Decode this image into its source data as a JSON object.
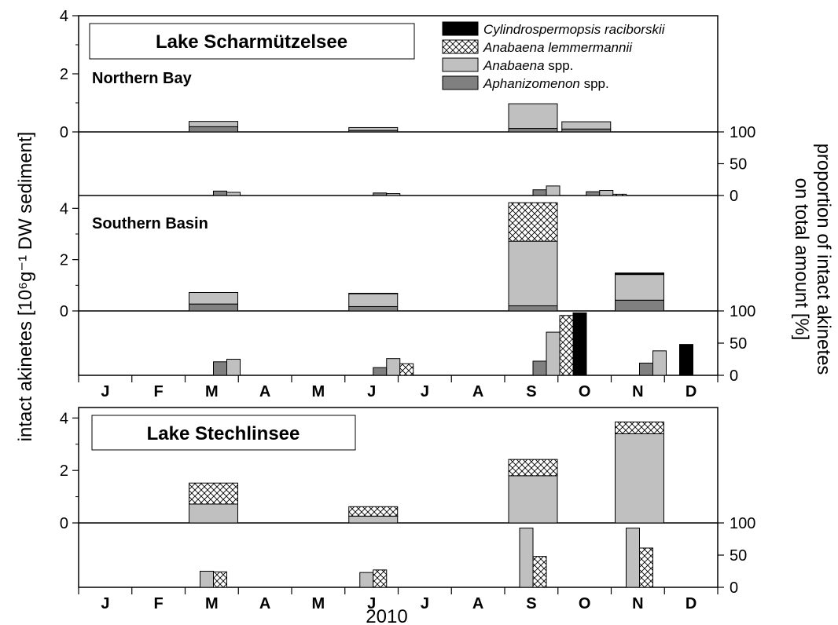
{
  "colors": {
    "cylindrospermopsis": "#000000",
    "lemmermannii": "#ffffff",
    "anabaena": "#c0c0c0",
    "aphanizomenon": "#808080"
  },
  "legend": [
    {
      "key": "cylindrospermopsis",
      "italic": "Cylindrospermopsis raciborskii",
      "plain": "",
      "pattern": "solid-black"
    },
    {
      "key": "lemmermannii",
      "italic": "Anabaena lemmermannii",
      "plain": "",
      "pattern": "crosshatch"
    },
    {
      "key": "anabaena",
      "italic": "Anabaena",
      "plain": " spp.",
      "pattern": "solid-lightgray"
    },
    {
      "key": "aphanizomenon",
      "italic": "Aphanizomenon",
      "plain": " spp.",
      "pattern": "solid-darkgray"
    }
  ],
  "labels": {
    "y_left": "intact akinetes [10⁶g⁻¹ DW sediment]",
    "y_right_line1": "proportion of intact akinetes",
    "y_right_line2": "on total amount [%]",
    "x": "2010",
    "lake1": "Lake Scharmützelsee",
    "lake2": "Lake Stechlinsee",
    "basin_north": "Northern Bay",
    "basin_south": "Southern Basin"
  },
  "months": [
    "J",
    "F",
    "M",
    "A",
    "M",
    "J",
    "J",
    "A",
    "S",
    "O",
    "N",
    "D"
  ],
  "chart_data": [
    {
      "type": "bar",
      "stacked": true,
      "panel": "Lake Scharmützelsee – Northern Bay (abundance)",
      "ylabel": "intact akinetes [10⁶g⁻¹ DW sediment]",
      "ylim": [
        0,
        4
      ],
      "yticks": [
        0,
        2,
        4
      ],
      "categories": [
        "Mar",
        "Jun",
        "Sep",
        "Oct"
      ],
      "series": [
        {
          "name": "Aphanizomenon spp.",
          "values": [
            0.18,
            0.05,
            0.12,
            0.1
          ]
        },
        {
          "name": "Anabaena spp.",
          "values": [
            0.18,
            0.1,
            0.85,
            0.25
          ]
        },
        {
          "name": "Anabaena lemmermannii",
          "values": [
            0,
            0,
            0,
            0
          ]
        },
        {
          "name": "Cylindrospermopsis raciborskii",
          "values": [
            0,
            0,
            0,
            0
          ]
        }
      ]
    },
    {
      "type": "bar",
      "panel": "Lake Scharmützelsee – Northern Bay (proportion)",
      "ylabel": "proportion of intact akinetes on total amount [%]",
      "ylim": [
        0,
        100
      ],
      "yticks": [
        0,
        50,
        100
      ],
      "categories": [
        "Mar",
        "Jun",
        "Sep",
        "Oct"
      ],
      "series": [
        {
          "name": "Aphanizomenon spp.",
          "values": [
            7,
            4,
            9,
            6
          ]
        },
        {
          "name": "Anabaena spp.",
          "values": [
            5,
            3,
            15,
            8
          ]
        },
        {
          "name": "Anabaena lemmermannii",
          "values": [
            0,
            0,
            0,
            2
          ]
        },
        {
          "name": "Cylindrospermopsis raciborskii",
          "values": [
            0,
            0,
            0,
            0
          ]
        }
      ]
    },
    {
      "type": "bar",
      "stacked": true,
      "panel": "Lake Scharmützelsee – Southern Basin (abundance)",
      "ylabel": "intact akinetes [10⁶g⁻¹ DW sediment]",
      "ylim": [
        0,
        4.5
      ],
      "yticks": [
        0,
        2,
        4
      ],
      "categories": [
        "Mar",
        "Jun",
        "Sep",
        "Nov"
      ],
      "series": [
        {
          "name": "Aphanizomenon spp.",
          "values": [
            0.27,
            0.17,
            0.2,
            0.42
          ]
        },
        {
          "name": "Anabaena spp.",
          "values": [
            0.45,
            0.5,
            2.52,
            1.0
          ]
        },
        {
          "name": "Anabaena lemmermannii",
          "values": [
            0,
            0,
            1.5,
            0
          ]
        },
        {
          "name": "Cylindrospermopsis raciborskii",
          "values": [
            0,
            0.02,
            0,
            0.06
          ]
        }
      ]
    },
    {
      "type": "bar",
      "panel": "Lake Scharmützelsee – Southern Basin (proportion)",
      "ylabel": "proportion of intact akinetes on total amount [%]",
      "ylim": [
        0,
        100
      ],
      "yticks": [
        0,
        50,
        100
      ],
      "categories": [
        "Mar",
        "Jun",
        "Sep",
        "Nov"
      ],
      "series": [
        {
          "name": "Aphanizomenon spp.",
          "values": [
            21,
            12,
            22,
            19
          ]
        },
        {
          "name": "Anabaena spp.",
          "values": [
            25,
            26,
            67,
            38
          ]
        },
        {
          "name": "Anabaena lemmermannii",
          "values": [
            0,
            18,
            93,
            0
          ]
        },
        {
          "name": "Cylindrospermopsis raciborskii",
          "values": [
            0,
            0,
            97,
            48
          ]
        }
      ]
    },
    {
      "type": "bar",
      "stacked": true,
      "panel": "Lake Stechlinsee (abundance)",
      "ylabel": "intact akinetes [10⁶g⁻¹ DW sediment]",
      "ylim": [
        0,
        4.4
      ],
      "yticks": [
        0,
        2,
        4
      ],
      "categories": [
        "Mar",
        "Jun",
        "Sep",
        "Nov"
      ],
      "series": [
        {
          "name": "Anabaena spp.",
          "values": [
            0.72,
            0.26,
            1.8,
            3.4
          ]
        },
        {
          "name": "Anabaena lemmermannii",
          "values": [
            0.8,
            0.36,
            0.62,
            0.45
          ]
        }
      ]
    },
    {
      "type": "bar",
      "panel": "Lake Stechlinsee (proportion)",
      "ylabel": "proportion of intact akinetes on total amount [%]",
      "ylim": [
        0,
        100
      ],
      "yticks": [
        0,
        50,
        100
      ],
      "categories": [
        "Mar",
        "Jun",
        "Sep",
        "Nov"
      ],
      "series": [
        {
          "name": "Anabaena spp.",
          "values": [
            25,
            23,
            92,
            92
          ]
        },
        {
          "name": "Anabaena lemmermannii",
          "values": [
            24,
            27,
            48,
            61
          ]
        }
      ]
    }
  ]
}
